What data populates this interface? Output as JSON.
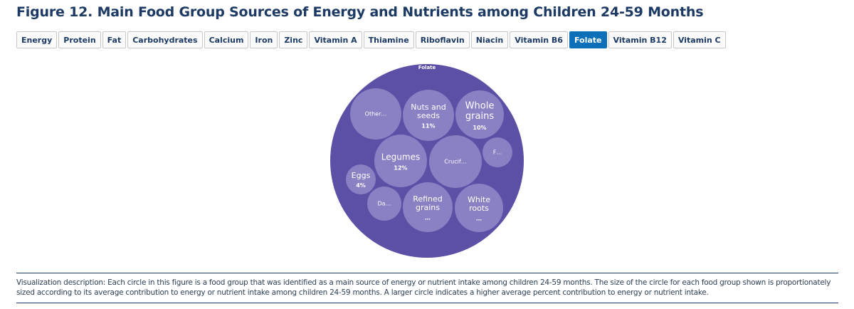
{
  "title": "Figure 12. Main Food Group Sources of Energy and Nutrients among Children 24-59 Months",
  "tabs": [
    {
      "label": "Energy",
      "active": false
    },
    {
      "label": "Protein",
      "active": false
    },
    {
      "label": "Fat",
      "active": false
    },
    {
      "label": "Carbohydrates",
      "active": false
    },
    {
      "label": "Calcium",
      "active": false
    },
    {
      "label": "Iron",
      "active": false
    },
    {
      "label": "Zinc",
      "active": false
    },
    {
      "label": "Vitamin A",
      "active": false
    },
    {
      "label": "Thiamine",
      "active": false
    },
    {
      "label": "Riboflavin",
      "active": false
    },
    {
      "label": "Niacin",
      "active": false
    },
    {
      "label": "Vitamin B6",
      "active": false
    },
    {
      "label": "Folate",
      "active": true
    },
    {
      "label": "Vitamin B12",
      "active": false
    },
    {
      "label": "Vitamin C",
      "active": false
    }
  ],
  "colors": {
    "outer_circle": "#5b4fa6",
    "inner_circle": "#8a80c4",
    "tab_active": "#0d6fb8",
    "title": "#1c3a63"
  },
  "chart_data": {
    "type": "bubble",
    "title": "Folate",
    "series": [
      {
        "name": "Other...",
        "label": "Other…",
        "value_label": ""
      },
      {
        "name": "Nuts and seeds",
        "label": "Nuts and seeds",
        "value_label": "11%",
        "value": 11
      },
      {
        "name": "Whole grains",
        "label": "Whole grains",
        "value_label": "10%",
        "value": 10
      },
      {
        "name": "F...",
        "label": "F…",
        "value_label": ""
      },
      {
        "name": "Legumes",
        "label": "Legumes",
        "value_label": "12%",
        "value": 12
      },
      {
        "name": "Crucif...",
        "label": "Crucif…",
        "value_label": ""
      },
      {
        "name": "Eggs",
        "label": "Eggs",
        "value_label": "4%",
        "value": 4
      },
      {
        "name": "Da...",
        "label": "Da…",
        "value_label": ""
      },
      {
        "name": "Refined grains",
        "label": "Refined grains",
        "value_label": "…"
      },
      {
        "name": "White roots",
        "label": "White roots",
        "value_label": "…"
      }
    ]
  },
  "description": "Visualization description: Each circle in this figure is a food group that was identified as a main source of energy or nutrient intake among children 24-59 months. The size of the circle for each food group shown is proportionately sized according to its average contribution to energy or nutrient intake among children 24-59 months. A larger circle indicates a higher average percent contribution to energy or nutrient intake."
}
